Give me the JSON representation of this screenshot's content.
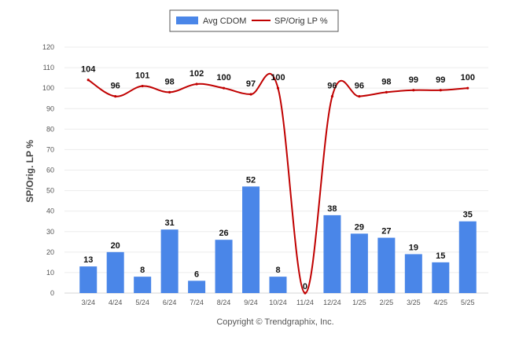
{
  "chart_data": {
    "type": "bar",
    "categories": [
      "3/24",
      "4/24",
      "5/24",
      "6/24",
      "7/24",
      "8/24",
      "9/24",
      "10/24",
      "11/24",
      "12/24",
      "1/25",
      "2/25",
      "3/25",
      "4/25",
      "5/25"
    ],
    "series": [
      {
        "name": "Avg CDOM",
        "type": "bar",
        "color": "#4a86e8",
        "values": [
          13,
          20,
          8,
          31,
          6,
          26,
          52,
          8,
          0,
          38,
          29,
          27,
          19,
          15,
          35
        ]
      },
      {
        "name": "SP/Orig LP %",
        "type": "line",
        "color": "#c00000",
        "values": [
          104,
          96,
          101,
          98,
          102,
          100,
          97,
          100,
          0,
          96,
          96,
          98,
          99,
          99,
          100
        ]
      }
    ],
    "ylabel": "SP/Orig. LP %",
    "ylim": [
      0,
      120
    ],
    "yticks": [
      0,
      10,
      20,
      30,
      40,
      50,
      60,
      70,
      80,
      90,
      100,
      110,
      120
    ],
    "grid": true,
    "legend": "top-center"
  },
  "copyright": "Copyright © Trendgraphix, Inc."
}
